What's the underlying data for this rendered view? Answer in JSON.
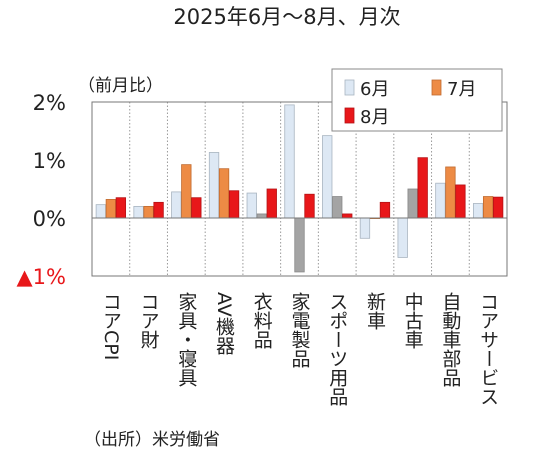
{
  "title": "2025年6月～8月、月次",
  "unit_label": "（前月比）",
  "source": "（出所）米労働省",
  "chart_data": {
    "type": "bar",
    "categories": [
      "コアCPI",
      "コア財",
      "家具・寝具",
      "AV機器",
      "衣料品",
      "家電製品",
      "スポーツ用品",
      "新車",
      "中古車",
      "自動車部品",
      "コアサービス"
    ],
    "series": [
      {
        "name": "6月",
        "color": "#dde8f4",
        "values": [
          0.23,
          0.2,
          0.45,
          1.13,
          0.43,
          1.95,
          1.42,
          -0.35,
          -0.68,
          0.6,
          0.25
        ]
      },
      {
        "name": "7月",
        "color": "#ed8b45",
        "values": [
          0.32,
          0.2,
          0.92,
          0.85,
          0.07,
          -0.93,
          0.37,
          0.0,
          0.5,
          0.88,
          0.37
        ]
      },
      {
        "name": "8月",
        "color": "#e8171a",
        "values": [
          0.35,
          0.27,
          0.35,
          0.47,
          0.5,
          0.41,
          0.07,
          0.27,
          1.04,
          0.57,
          0.36
        ]
      }
    ],
    "y_ticks": [
      {
        "value": 2,
        "label": "2%",
        "color": "#222222"
      },
      {
        "value": 1,
        "label": "1%",
        "color": "#222222"
      },
      {
        "value": 0,
        "label": "0%",
        "color": "#222222"
      },
      {
        "value": -1,
        "label": "▲1%",
        "color": "#e8171a"
      }
    ],
    "ylim": [
      -1,
      2
    ],
    "grid": true,
    "legend_position": "top-right"
  }
}
